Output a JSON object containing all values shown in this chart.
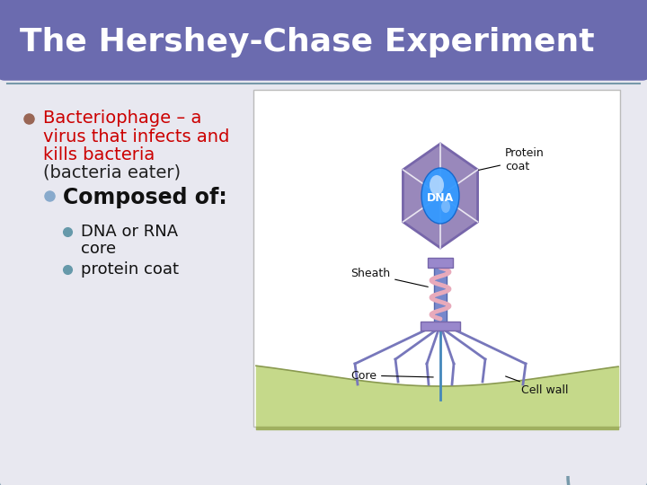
{
  "title": "The Hershey-Chase Experiment",
  "title_color": "#ffffff",
  "title_bg_color": "#6b6baf",
  "slide_bg_color": "#d3d3e0",
  "content_bg_color": "#e8e8f0",
  "border_color": "#7799aa",
  "bullet1_line1": "Bacteriophage – a",
  "bullet1_line2": "virus that infects and",
  "bullet1_line3": "kills bacteria",
  "bullet1_line4": "(bacteria eater)",
  "bullet1_color": "#cc0000",
  "bullet1_line4_color": "#222222",
  "bullet1_bullet_color": "#996655",
  "bullet2_text": "Composed of:",
  "bullet2_color": "#111111",
  "bullet2_bullet_color": "#88aacc",
  "bullet3a_text": "DNA or RNA",
  "bullet3a2_text": "core",
  "bullet3b_text": "protein coat",
  "bullet3_color": "#111111",
  "bullet3_bullet_color": "#6699aa",
  "title_fontsize": 26,
  "bullet1_fontsize": 14,
  "bullet2_fontsize": 17,
  "bullet3_fontsize": 13
}
